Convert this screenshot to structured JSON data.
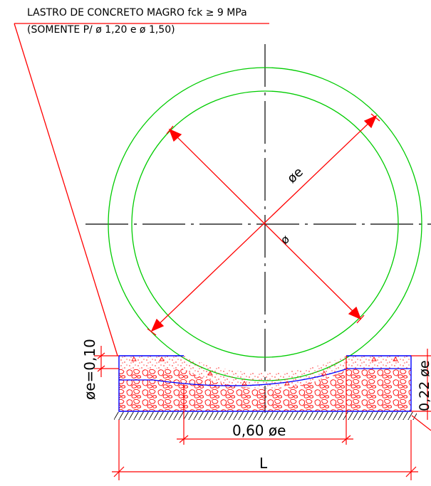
{
  "note": {
    "line1": "LASTRO DE CONCRETO MAGRO fck ≥ 9 MPa",
    "line2": "(SOMENTE P/ ø 1,20 e ø 1,50)"
  },
  "dimensions": {
    "outer_diameter": "øe",
    "inner_diameter": "ø",
    "thickness_left": "øe=0,10",
    "thickness_right": "0,22 øe",
    "bedding_width": "0,60  øe",
    "total_width": "L"
  },
  "colors": {
    "pipe": "#00cc00",
    "dimension": "#ff0000",
    "bedding": "#0000ff",
    "axis": "#000000",
    "text": "#000000"
  }
}
